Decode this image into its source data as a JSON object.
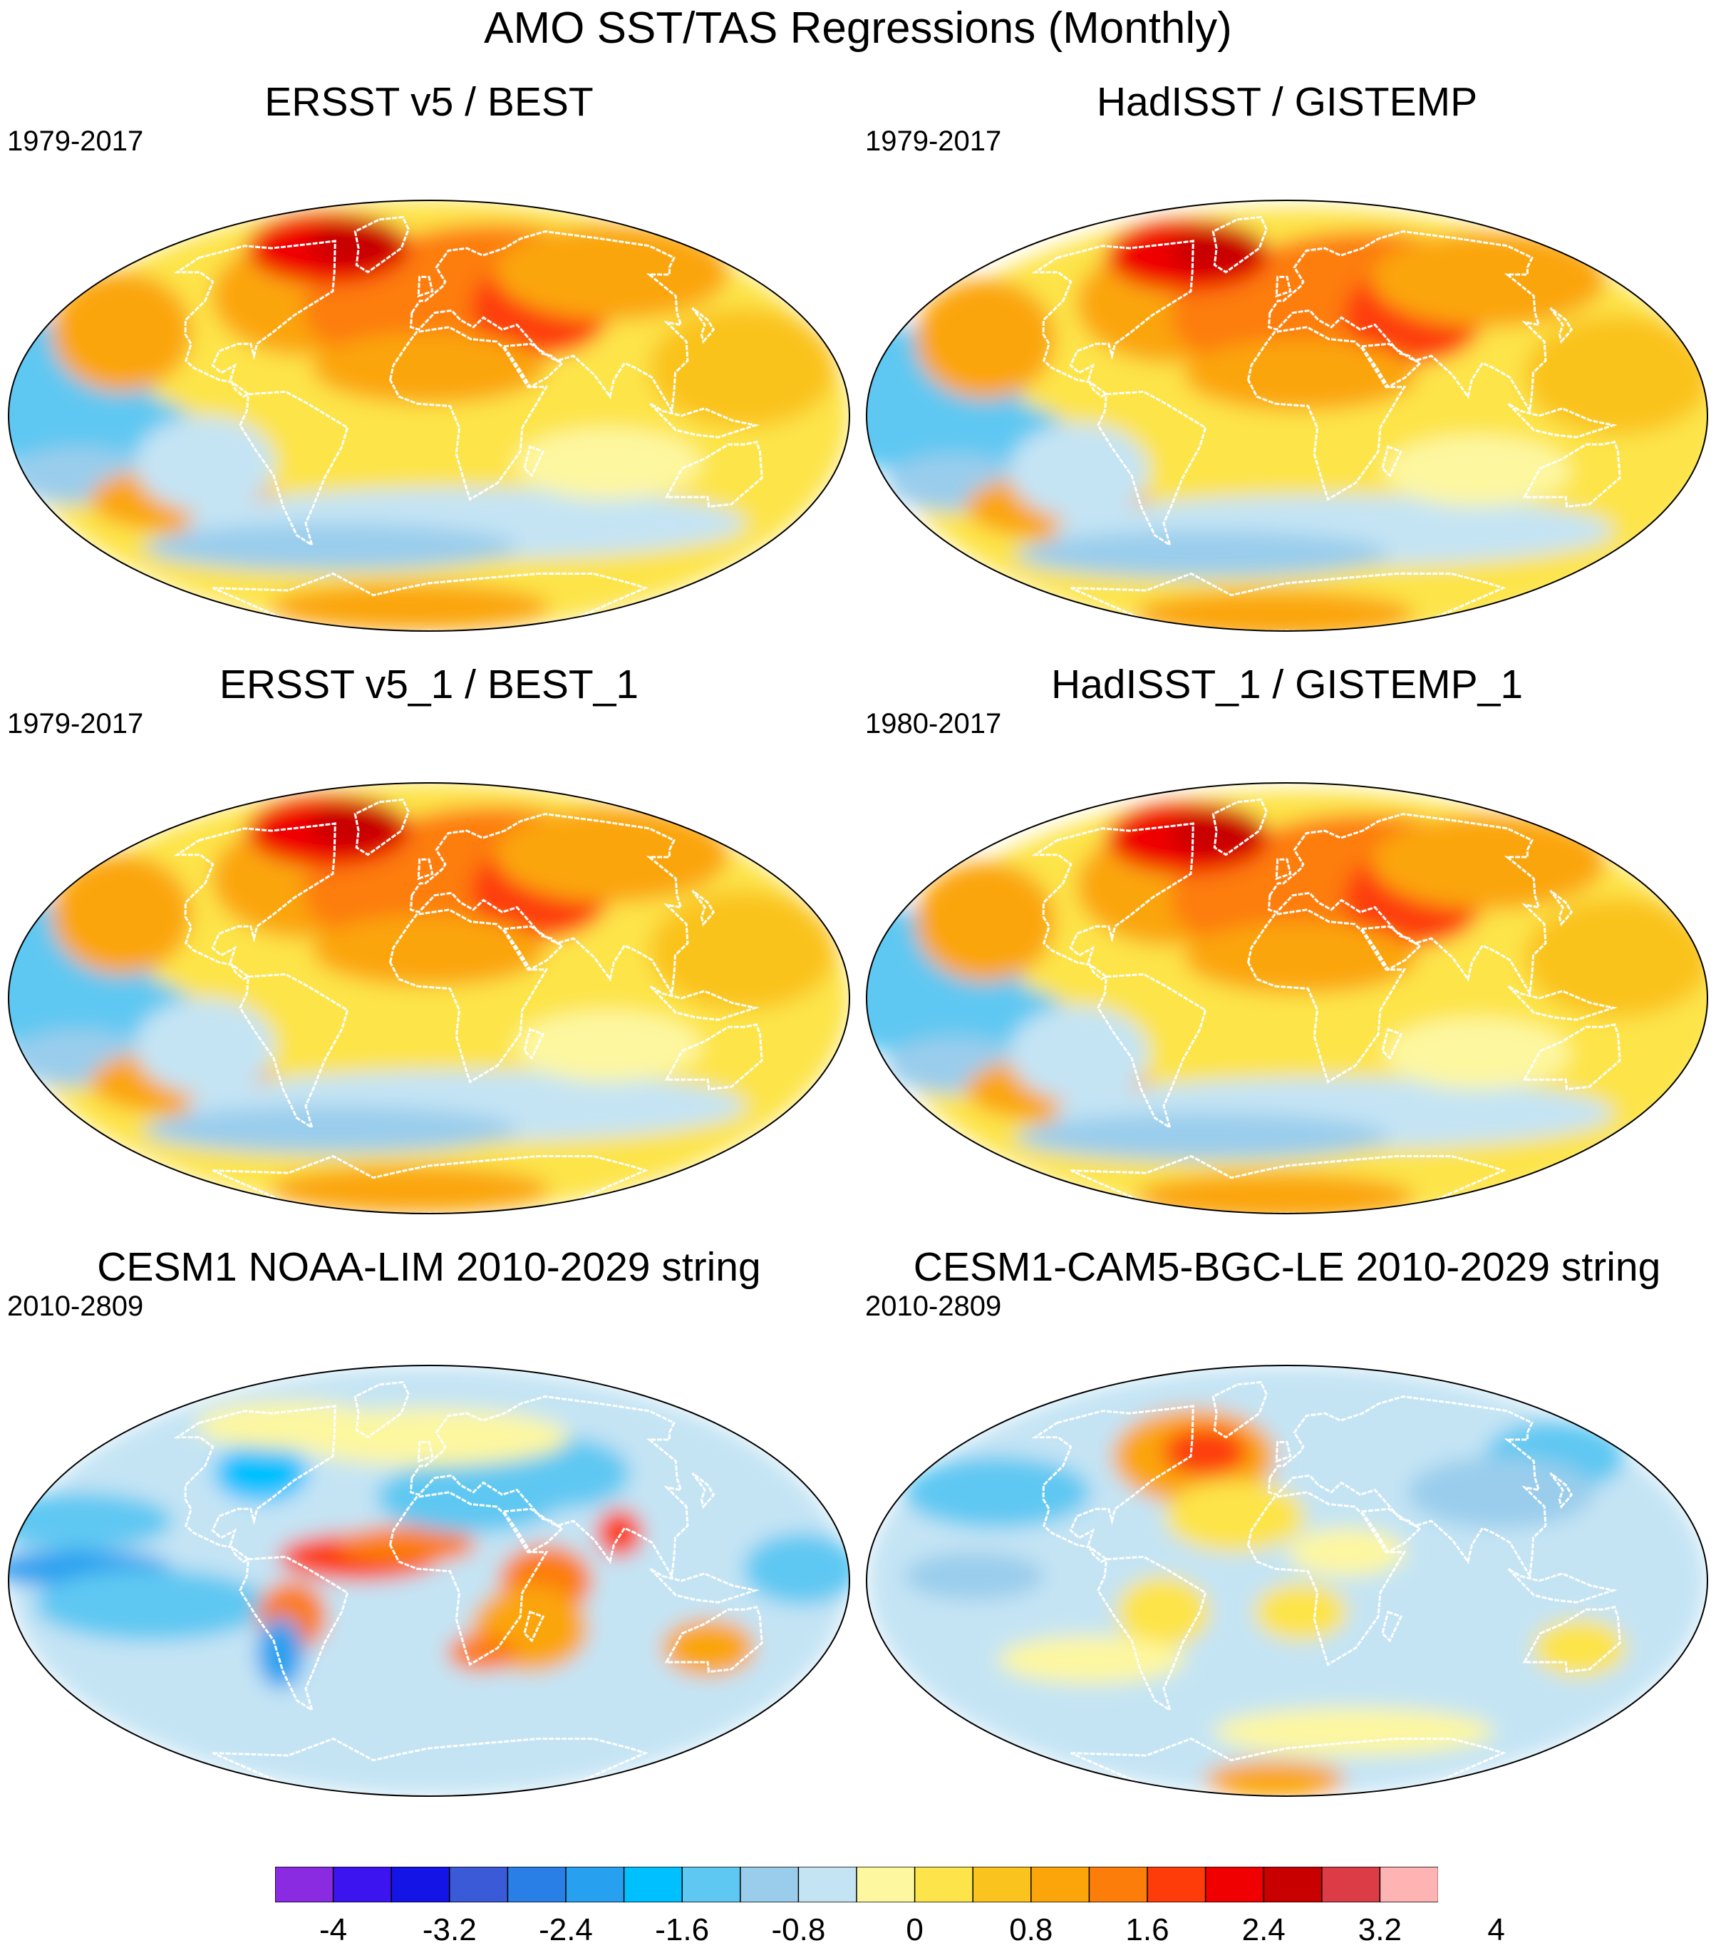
{
  "title": "AMO SST/TAS Regressions (Monthly)",
  "panels": [
    {
      "title": "ERSST v5 / BEST",
      "years": "1979-2017",
      "pattern": "obs",
      "variant": 0
    },
    {
      "title": "HadISST / GISTEMP",
      "years": "1979-2017",
      "pattern": "obs",
      "variant": 1
    },
    {
      "title": "ERSST v5_1 / BEST_1",
      "years": "1979-2017",
      "pattern": "obs",
      "variant": 0
    },
    {
      "title": "HadISST_1 / GISTEMP_1",
      "years": "1980-2017",
      "pattern": "obs",
      "variant": 1
    },
    {
      "title": "CESM1 NOAA-LIM 2010-2029 string",
      "years": "2010-2809",
      "pattern": "lim",
      "variant": 2
    },
    {
      "title": "CESM1-CAM5-BGC-LE 2010-2029 string",
      "years": "2010-2809",
      "pattern": "le",
      "variant": 3
    }
  ],
  "colorbar": {
    "colors": [
      "#8a2be2",
      "#3c14f0",
      "#1414e6",
      "#3a5ad8",
      "#2a7fe6",
      "#28a0f0",
      "#00c0ff",
      "#5ec8f2",
      "#9acdec",
      "#c4e4f4",
      "#fdf7a0",
      "#fde44a",
      "#fac31e",
      "#fba50a",
      "#fd7d0a",
      "#fd3c0a",
      "#f00000",
      "#c80000",
      "#dc3c46",
      "#ffb4b4"
    ],
    "tick_labels": [
      "-4",
      "-3.2",
      "-2.4",
      "-1.6",
      "-0.8",
      "0",
      "0.8",
      "1.6",
      "2.4",
      "3.2",
      "4"
    ]
  }
}
